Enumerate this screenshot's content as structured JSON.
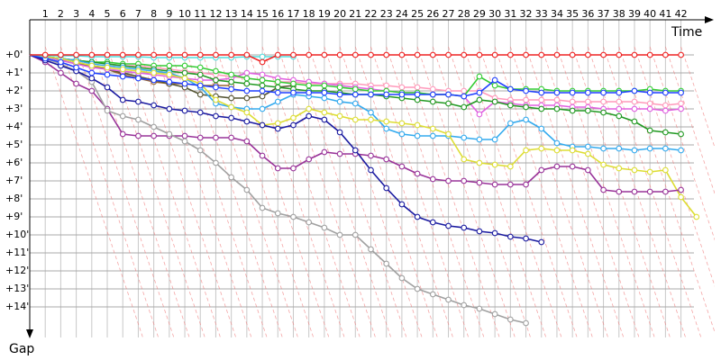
{
  "chart_data": {
    "type": "line",
    "x_label": "Time",
    "y_label": "Gap",
    "x": [
      0,
      1,
      2,
      3,
      4,
      5,
      6,
      7,
      8,
      9,
      10,
      11,
      12,
      13,
      14,
      15,
      16,
      17,
      18,
      19,
      20,
      21,
      22,
      23,
      24,
      25,
      26,
      27,
      28,
      29,
      30,
      31,
      32,
      33,
      34,
      35,
      36,
      37,
      38,
      39,
      40,
      41,
      42,
      43
    ],
    "xlim": [
      0,
      44
    ],
    "xticks": [
      1,
      2,
      3,
      4,
      5,
      6,
      7,
      8,
      9,
      10,
      11,
      12,
      13,
      14,
      15,
      16,
      17,
      18,
      19,
      20,
      21,
      22,
      23,
      24,
      25,
      26,
      27,
      28,
      29,
      30,
      31,
      32,
      33,
      34,
      35,
      36,
      37,
      38,
      39,
      40,
      41,
      42
    ],
    "ylim": [
      -1.95,
      15.7
    ],
    "y_reversed": true,
    "yticks": [
      {
        "value": 0,
        "label": "+0'"
      },
      {
        "value": 1,
        "label": "+1'"
      },
      {
        "value": 2,
        "label": "+2'"
      },
      {
        "value": 3,
        "label": "+3'"
      },
      {
        "value": 4,
        "label": "+4'"
      },
      {
        "value": 5,
        "label": "+5'"
      },
      {
        "value": 6,
        "label": "+6'"
      },
      {
        "value": 7,
        "label": "+7'"
      },
      {
        "value": 8,
        "label": "+8'"
      },
      {
        "value": 9,
        "label": "+9'"
      },
      {
        "value": 10,
        "label": "+10'"
      },
      {
        "value": 11,
        "label": "+11'"
      },
      {
        "value": 12,
        "label": "+12'"
      },
      {
        "value": 13,
        "label": "+13'"
      },
      {
        "value": 14,
        "label": "+14'"
      }
    ],
    "grid": true,
    "series": [
      {
        "color": "#ee2222",
        "values": [
          0,
          0,
          0,
          0,
          0,
          0,
          0,
          0,
          0,
          0,
          0,
          0,
          0,
          0,
          0,
          0.4,
          0,
          0,
          0,
          0,
          0,
          0,
          0,
          0,
          0,
          0,
          0,
          0,
          0,
          0,
          0,
          0,
          0,
          0,
          0,
          0,
          0,
          0,
          0,
          0,
          0,
          0,
          0,
          null
        ]
      },
      {
        "color": "#55dddd",
        "values": [
          0,
          0.05,
          0.05,
          0.05,
          0.1,
          0.1,
          0.1,
          0.1,
          0.15,
          0.15,
          0.15,
          0.15,
          0.15,
          0.15,
          0.1,
          0.1,
          0.1,
          0.1,
          null,
          null,
          null,
          null,
          null,
          null,
          null,
          null,
          null,
          null,
          null,
          null,
          null,
          null,
          null,
          null,
          null,
          null,
          null,
          null,
          null,
          null,
          null,
          null,
          null,
          null
        ]
      },
      {
        "color": "#1f3fff",
        "values": [
          0,
          0.2,
          0.4,
          0.7,
          1.0,
          1.1,
          1.2,
          1.3,
          1.4,
          1.5,
          1.6,
          1.7,
          1.8,
          1.9,
          2.0,
          2.0,
          2.1,
          2.1,
          2.1,
          2.1,
          2.2,
          2.2,
          2.2,
          2.2,
          2.2,
          2.2,
          2.2,
          2.2,
          2.3,
          2.1,
          1.4,
          1.9,
          2.0,
          2.1,
          2.1,
          2.1,
          2.1,
          2.1,
          2.1,
          2.0,
          2.1,
          2.1,
          2.1,
          null
        ]
      },
      {
        "color": "#1a1aa0",
        "values": [
          0,
          0.3,
          0.6,
          0.9,
          1.3,
          1.8,
          2.5,
          2.6,
          2.8,
          3.0,
          3.1,
          3.2,
          3.4,
          3.5,
          3.7,
          3.9,
          4.1,
          3.9,
          3.4,
          3.6,
          4.3,
          5.3,
          6.4,
          7.4,
          8.3,
          9.0,
          9.3,
          9.5,
          9.6,
          9.8,
          9.9,
          10.1,
          10.2,
          10.4,
          null,
          null,
          null,
          null,
          null,
          null,
          null,
          null,
          null,
          null
        ]
      },
      {
        "color": "#a0a0a0",
        "values": [
          0,
          0.2,
          0.5,
          0.9,
          1.5,
          3.1,
          3.4,
          3.6,
          4.0,
          4.4,
          4.8,
          5.3,
          6.0,
          6.8,
          7.5,
          8.5,
          8.8,
          9.0,
          9.3,
          9.6,
          10.0,
          10.0,
          10.8,
          11.6,
          12.4,
          13.0,
          13.3,
          13.6,
          13.9,
          14.1,
          14.4,
          14.7,
          14.9,
          null,
          null,
          null,
          null,
          null,
          null,
          null,
          null,
          null,
          null,
          null
        ]
      },
      {
        "color": "#993399",
        "values": [
          0,
          0.4,
          1.0,
          1.6,
          2.0,
          3.0,
          4.4,
          4.5,
          4.5,
          4.5,
          4.5,
          4.6,
          4.6,
          4.6,
          4.8,
          5.6,
          6.3,
          6.3,
          5.8,
          5.4,
          5.5,
          5.5,
          5.6,
          5.8,
          6.2,
          6.6,
          6.9,
          7.0,
          7.0,
          7.1,
          7.2,
          7.2,
          7.2,
          6.4,
          6.2,
          6.2,
          6.4,
          7.5,
          7.6,
          7.6,
          7.6,
          7.6,
          7.5,
          null
        ]
      },
      {
        "color": "#dddd33",
        "values": [
          0,
          0.1,
          0.2,
          0.4,
          0.6,
          0.7,
          0.8,
          0.9,
          1.0,
          1.1,
          1.3,
          1.6,
          2.5,
          2.9,
          3.2,
          3.9,
          3.8,
          3.5,
          3.0,
          3.2,
          3.4,
          3.6,
          3.6,
          3.7,
          3.8,
          3.9,
          4.1,
          4.4,
          5.8,
          6.0,
          6.1,
          6.2,
          5.3,
          5.2,
          5.3,
          5.3,
          5.5,
          6.1,
          6.3,
          6.4,
          6.5,
          6.4,
          7.9,
          9.0
        ]
      },
      {
        "color": "#33aaee",
        "values": [
          0,
          0.1,
          0.2,
          0.3,
          0.5,
          0.6,
          0.7,
          0.8,
          0.9,
          1.0,
          1.3,
          1.8,
          2.7,
          2.9,
          3.0,
          3.0,
          2.6,
          2.2,
          2.3,
          2.4,
          2.6,
          2.7,
          3.2,
          4.1,
          4.4,
          4.5,
          4.5,
          4.5,
          4.6,
          4.7,
          4.7,
          3.8,
          3.6,
          4.1,
          4.9,
          5.1,
          5.1,
          5.2,
          5.2,
          5.3,
          5.2,
          5.2,
          5.3,
          null
        ]
      },
      {
        "color": "#229922",
        "values": [
          0,
          0.1,
          0.2,
          0.3,
          0.4,
          0.5,
          0.6,
          0.7,
          0.8,
          0.9,
          1.0,
          1.1,
          1.4,
          1.5,
          1.6,
          1.7,
          1.8,
          1.9,
          2.0,
          2.0,
          2.1,
          2.2,
          2.2,
          2.3,
          2.4,
          2.5,
          2.6,
          2.7,
          2.9,
          2.5,
          2.6,
          2.8,
          2.9,
          3.0,
          3.0,
          3.1,
          3.1,
          3.2,
          3.4,
          3.7,
          4.2,
          4.3,
          4.4,
          null
        ]
      },
      {
        "color": "#33cc33",
        "values": [
          0,
          0.1,
          0.2,
          0.3,
          0.4,
          0.4,
          0.5,
          0.5,
          0.6,
          0.6,
          0.6,
          0.7,
          0.9,
          1.1,
          1.3,
          1.4,
          1.5,
          1.6,
          1.7,
          1.7,
          1.8,
          1.9,
          2.0,
          2.0,
          2.1,
          2.1,
          2.2,
          2.2,
          2.3,
          1.2,
          1.7,
          1.9,
          1.9,
          1.9,
          2.0,
          2.0,
          2.0,
          2.0,
          2.0,
          2.0,
          1.9,
          2.0,
          2.0,
          null
        ]
      },
      {
        "color": "#e060e0",
        "values": [
          0,
          0.1,
          0.3,
          0.5,
          0.7,
          0.8,
          0.9,
          1.0,
          1.1,
          1.2,
          1.3,
          1.4,
          1.4,
          1.3,
          1.0,
          1.1,
          1.3,
          1.4,
          1.5,
          1.6,
          1.7,
          1.8,
          1.9,
          2.0,
          2.1,
          2.1,
          2.2,
          2.2,
          2.3,
          3.3,
          2.6,
          2.7,
          2.8,
          2.8,
          2.8,
          2.9,
          2.9,
          3.0,
          3.0,
          3.0,
          3.0,
          3.1,
          3.0,
          null
        ]
      },
      {
        "color": "#ff99bb",
        "values": [
          0,
          0.1,
          0.2,
          0.3,
          0.4,
          0.5,
          0.6,
          0.6,
          0.7,
          0.8,
          0.9,
          1.0,
          1.1,
          1.2,
          1.3,
          1.4,
          1.5,
          1.5,
          1.6,
          1.6,
          1.6,
          1.6,
          1.7,
          1.7,
          1.8,
          1.8,
          1.9,
          2.0,
          2.0,
          2.0,
          2.4,
          2.5,
          2.5,
          2.5,
          2.5,
          2.6,
          2.6,
          2.6,
          2.6,
          2.6,
          2.7,
          2.8,
          2.7,
          null
        ]
      },
      {
        "color": "#555533",
        "values": [
          0,
          0.1,
          0.3,
          0.5,
          0.6,
          0.8,
          1.0,
          1.2,
          1.4,
          1.6,
          1.8,
          2.2,
          2.3,
          2.4,
          2.4,
          2.3,
          1.8,
          1.7,
          null,
          null,
          null,
          null,
          null,
          null,
          null,
          null,
          null,
          null,
          null,
          null,
          null,
          null,
          null,
          null,
          null,
          null,
          null,
          null,
          null,
          null,
          null,
          null,
          null,
          null
        ]
      },
      {
        "color": "#996633",
        "values": [
          0,
          0.1,
          0.2,
          0.4,
          0.6,
          0.8,
          1.1,
          1.3,
          1.5,
          1.6,
          1.6,
          1.7,
          1.7,
          1.7,
          null,
          null,
          null,
          null,
          null,
          null,
          null,
          null,
          null,
          null,
          null,
          null,
          null,
          null,
          null,
          null,
          null,
          null,
          null,
          null,
          null,
          null,
          null,
          null,
          null,
          null,
          null,
          null,
          null,
          null
        ]
      }
    ]
  }
}
